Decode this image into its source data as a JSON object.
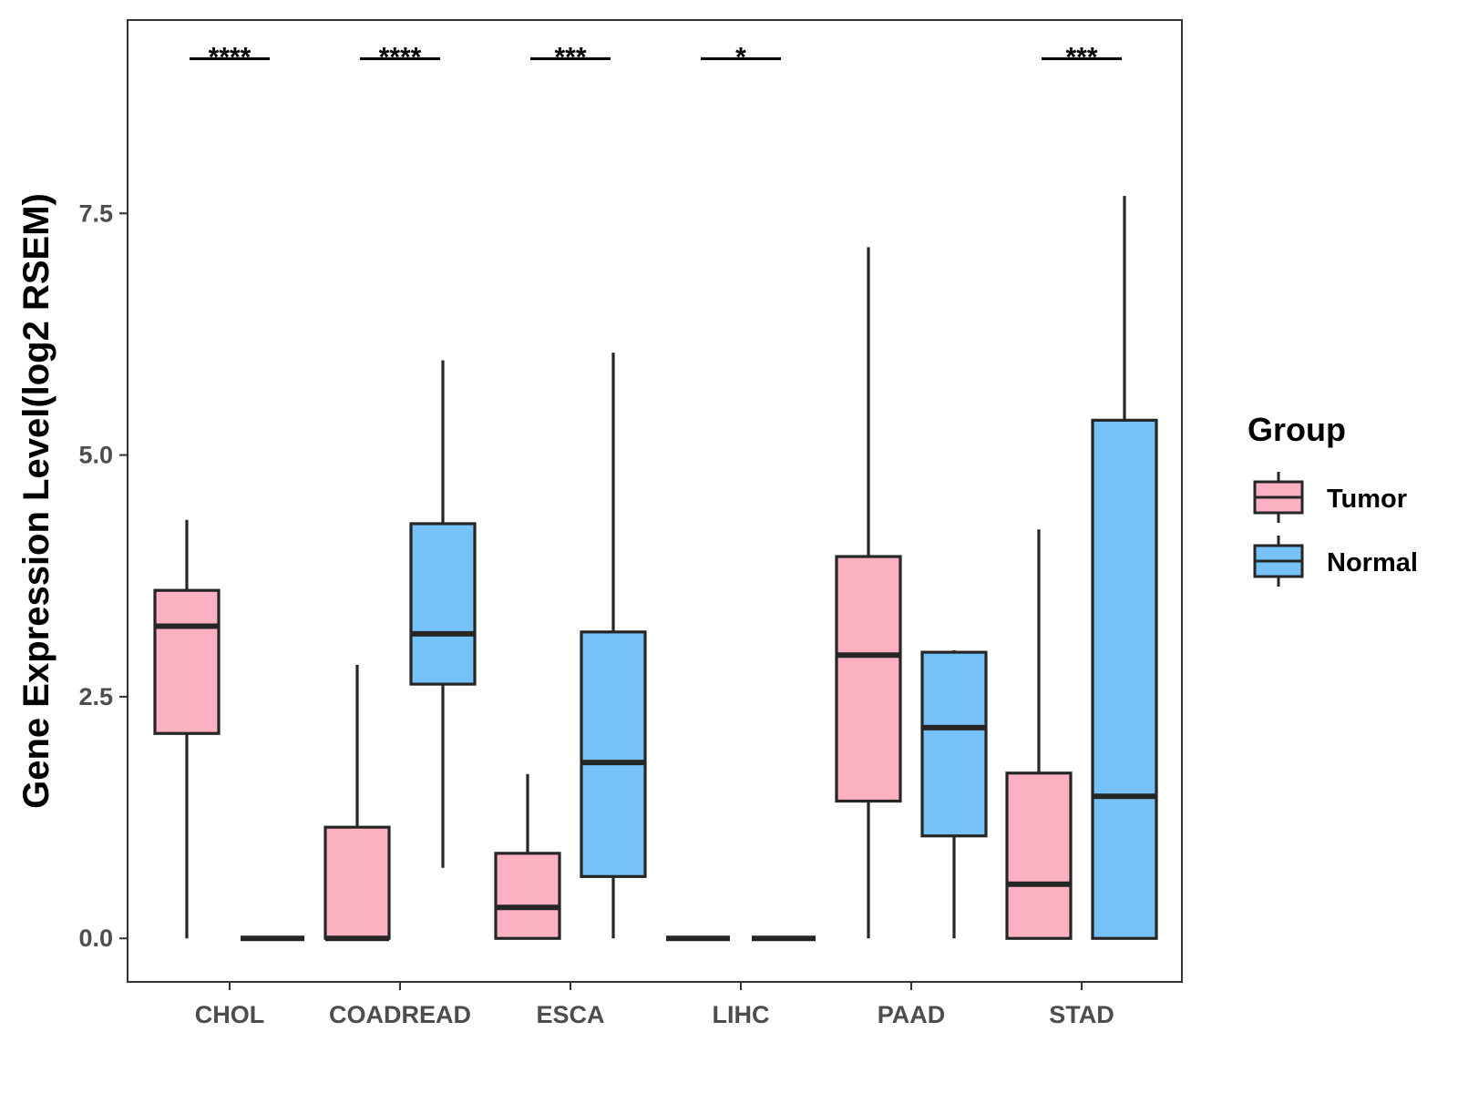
{
  "chart_data": {
    "type": "boxplot",
    "ylabel": "Gene Expression Level(log2 RSEM)",
    "xlabel": "",
    "ylim": [
      -0.45,
      9.5
    ],
    "yticks": [
      0.0,
      2.5,
      5.0,
      7.5
    ],
    "ytick_labels": [
      "0.0",
      "2.5",
      "5.0",
      "7.5"
    ],
    "categories": [
      "CHOL",
      "COADREAD",
      "ESCA",
      "LIHC",
      "PAAD",
      "STAD"
    ],
    "legend": {
      "title": "Group",
      "position": "right",
      "items": [
        {
          "name": "Tumor",
          "color": "#FBB1C2"
        },
        {
          "name": "Normal",
          "color": "#77C1F9"
        }
      ]
    },
    "series": [
      {
        "name": "Tumor",
        "color": "#FBB1C2",
        "boxes": [
          {
            "min": 0.0,
            "q1": 2.12,
            "median": 3.23,
            "q3": 3.6,
            "max": 4.33
          },
          {
            "min": 0.0,
            "q1": 0.0,
            "median": 0.0,
            "q3": 1.15,
            "max": 2.83
          },
          {
            "min": 0.0,
            "q1": 0.0,
            "median": 0.32,
            "q3": 0.88,
            "max": 1.7
          },
          {
            "min": 0.0,
            "q1": 0.0,
            "median": 0.0,
            "q3": 0.0,
            "max": 0.0
          },
          {
            "min": 0.0,
            "q1": 1.42,
            "median": 2.93,
            "q3": 3.95,
            "max": 7.15
          },
          {
            "min": 0.0,
            "q1": 0.0,
            "median": 0.56,
            "q3": 1.71,
            "max": 4.23
          }
        ]
      },
      {
        "name": "Normal",
        "color": "#77C1F9",
        "boxes": [
          {
            "min": 0.0,
            "q1": 0.0,
            "median": 0.0,
            "q3": 0.0,
            "max": 0.0
          },
          {
            "min": 0.73,
            "q1": 2.63,
            "median": 3.15,
            "q3": 4.29,
            "max": 5.98
          },
          {
            "min": 0.0,
            "q1": 0.64,
            "median": 1.82,
            "q3": 3.17,
            "max": 6.06
          },
          {
            "min": 0.0,
            "q1": 0.0,
            "median": 0.0,
            "q3": 0.0,
            "max": 0.0
          },
          {
            "min": 0.0,
            "q1": 1.06,
            "median": 2.18,
            "q3": 2.96,
            "max": 2.98
          },
          {
            "min": 0.0,
            "q1": 0.0,
            "median": 1.47,
            "q3": 5.36,
            "max": 7.68
          }
        ]
      }
    ],
    "significance": [
      {
        "category": "CHOL",
        "label": "****"
      },
      {
        "category": "COADREAD",
        "label": "****"
      },
      {
        "category": "ESCA",
        "label": "***"
      },
      {
        "category": "LIHC",
        "label": "*"
      },
      {
        "category": "PAAD",
        "label": ""
      },
      {
        "category": "STAD",
        "label": "***"
      }
    ],
    "significance_level": 9.1,
    "colors": {
      "box_stroke": "#262626",
      "panel_border": "#333333",
      "tick_text": "#4d4d4d"
    }
  }
}
